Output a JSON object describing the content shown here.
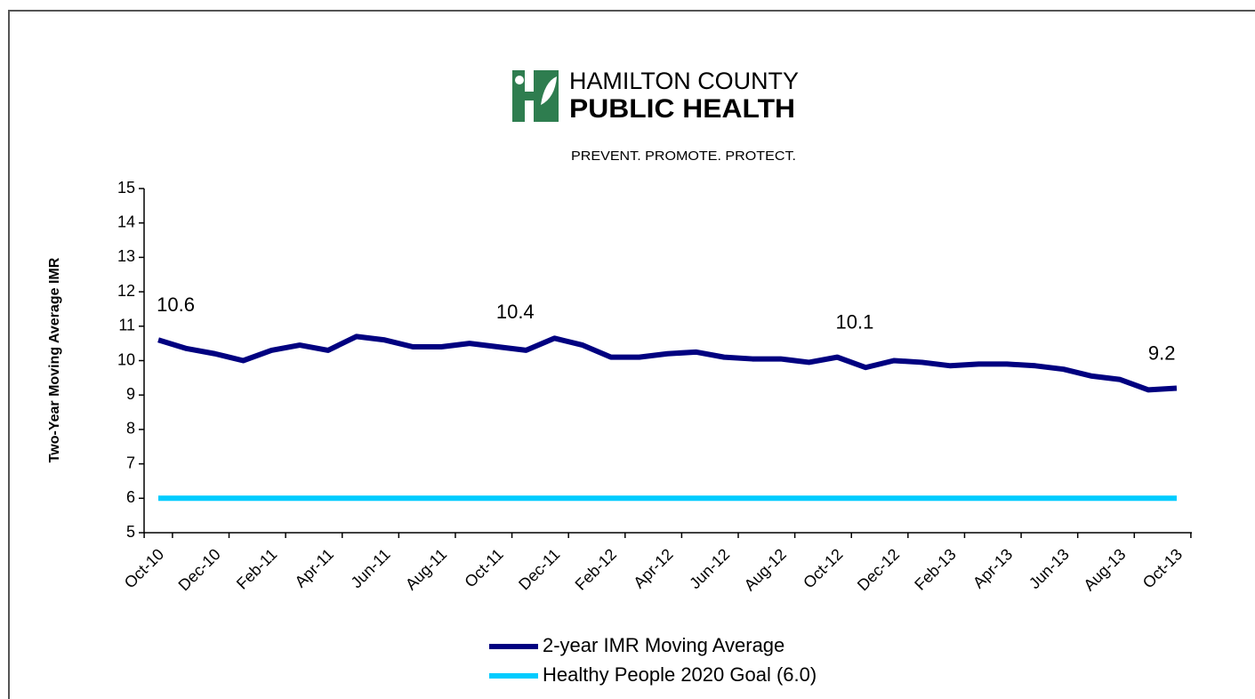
{
  "header": {
    "org_line1": "HAMILTON COUNTY",
    "org_line2": "PUBLIC HEALTH",
    "tagline": "PREVENT. PROMOTE. PROTECT."
  },
  "chart_data": {
    "type": "line",
    "y_label": "Two-Year Moving Average IMR",
    "categories": [
      "Oct-10",
      null,
      "Dec-10",
      null,
      "Feb-11",
      null,
      "Apr-11",
      null,
      "Jun-11",
      null,
      "Aug-11",
      null,
      "Oct-11",
      null,
      "Dec-11",
      null,
      "Feb-12",
      null,
      "Apr-12",
      null,
      "Jun-12",
      null,
      "Aug-12",
      null,
      "Oct-12",
      null,
      "Dec-12",
      null,
      "Feb-13",
      null,
      "Apr-13",
      null,
      "Jun-13",
      null,
      "Aug-13",
      null,
      "Oct-13"
    ],
    "series": [
      {
        "name": "2-year IMR Moving Average",
        "color": "#000080",
        "values": [
          10.6,
          10.35,
          10.2,
          10.0,
          10.3,
          10.45,
          10.3,
          10.7,
          10.6,
          10.4,
          10.4,
          10.5,
          10.4,
          10.3,
          10.65,
          10.45,
          10.1,
          10.1,
          10.2,
          10.25,
          10.1,
          10.05,
          10.05,
          9.95,
          10.1,
          9.8,
          10.0,
          9.95,
          9.85,
          9.9,
          9.9,
          9.85,
          9.75,
          9.55,
          9.45,
          9.15,
          9.2
        ],
        "value_labels": [
          "10.6",
          null,
          null,
          null,
          null,
          null,
          null,
          null,
          null,
          null,
          null,
          null,
          "10.4",
          null,
          null,
          null,
          null,
          null,
          null,
          null,
          null,
          null,
          null,
          null,
          "10.1",
          null,
          null,
          null,
          null,
          null,
          null,
          null,
          null,
          null,
          null,
          null,
          "9.2"
        ]
      },
      {
        "name": "Healthy People 2020 Goal (6.0)",
        "color": "#00ccff",
        "values": [
          6,
          6,
          6,
          6,
          6,
          6,
          6,
          6,
          6,
          6,
          6,
          6,
          6,
          6,
          6,
          6,
          6,
          6,
          6,
          6,
          6,
          6,
          6,
          6,
          6,
          6,
          6,
          6,
          6,
          6,
          6,
          6,
          6,
          6,
          6,
          6,
          6
        ]
      }
    ],
    "ylim": [
      5,
      15
    ],
    "yticks": [
      5,
      6,
      7,
      8,
      9,
      10,
      11,
      12,
      13,
      14,
      15
    ],
    "grid": false,
    "legend": "bottom"
  }
}
